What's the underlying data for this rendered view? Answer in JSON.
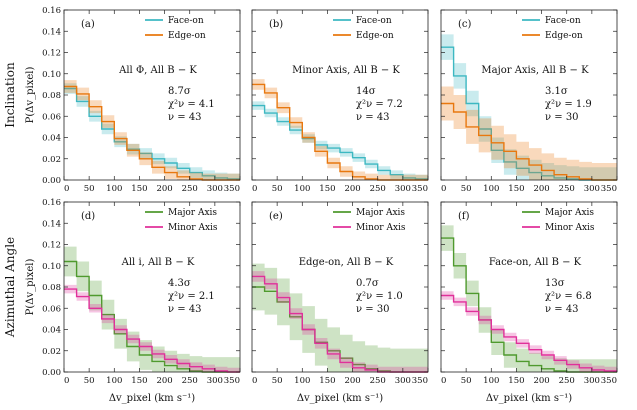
{
  "figure": {
    "row_titles": [
      "Inclination",
      "Azimuthal Angle"
    ],
    "ylabel": "P(Δv_pixel)",
    "xlabel": "Δv_pixel (km s⁻¹)",
    "colors": {
      "teal": "#3db8c2",
      "orange": "#e8780f",
      "green": "#4f9a2e",
      "magenta": "#e0309a"
    }
  },
  "chart_data": [
    {
      "panel": "(a)",
      "type": "step",
      "row": 0,
      "col": 0,
      "annotation": [
        "All Φ, All B − K",
        "8.7σ",
        "χ²ν = 4.1",
        "ν = 43"
      ],
      "xlim": [
        0,
        350
      ],
      "ylim": [
        0,
        0.16
      ],
      "xticks": [
        0,
        50,
        100,
        150,
        200,
        250,
        300,
        350
      ],
      "yticks": [
        0.0,
        0.02,
        0.04,
        0.06,
        0.08,
        0.1,
        0.12,
        0.14,
        0.16
      ],
      "series": [
        {
          "name": "Face-on",
          "color": "teal",
          "band": 0.005,
          "x": [
            0,
            25,
            50,
            75,
            100,
            125,
            150,
            175,
            200,
            225,
            250,
            275,
            300,
            325,
            350
          ],
          "y": [
            0.086,
            0.074,
            0.06,
            0.048,
            0.036,
            0.029,
            0.025,
            0.02,
            0.016,
            0.011,
            0.007,
            0.004,
            0.002,
            0.001,
            0.0
          ]
        },
        {
          "name": "Edge-on",
          "color": "orange",
          "band": 0.006,
          "x": [
            0,
            25,
            50,
            75,
            100,
            125,
            150,
            175,
            200,
            225,
            250,
            275,
            300,
            325,
            350
          ],
          "y": [
            0.088,
            0.081,
            0.069,
            0.055,
            0.039,
            0.028,
            0.02,
            0.012,
            0.007,
            0.003,
            0.001,
            0.0,
            0.0,
            0.0,
            0.0
          ]
        }
      ]
    },
    {
      "panel": "(b)",
      "type": "step",
      "row": 0,
      "col": 1,
      "annotation": [
        "Minor Axis, All B − K",
        "14σ",
        "χ²ν = 7.2",
        "ν = 43"
      ],
      "xlim": [
        0,
        350
      ],
      "ylim": [
        0,
        0.16
      ],
      "xticks": [
        0,
        50,
        100,
        150,
        200,
        250,
        300,
        350
      ],
      "yticks": [
        0.0,
        0.02,
        0.04,
        0.06,
        0.08,
        0.1,
        0.12,
        0.14,
        0.16
      ],
      "series": [
        {
          "name": "Face-on",
          "color": "teal",
          "band": 0.004,
          "x": [
            0,
            25,
            50,
            75,
            100,
            125,
            150,
            175,
            200,
            225,
            250,
            275,
            300,
            325,
            350
          ],
          "y": [
            0.07,
            0.063,
            0.055,
            0.047,
            0.039,
            0.033,
            0.03,
            0.026,
            0.021,
            0.015,
            0.009,
            0.005,
            0.002,
            0.001,
            0.0
          ]
        },
        {
          "name": "Edge-on",
          "color": "orange",
          "band": 0.005,
          "x": [
            0,
            25,
            50,
            75,
            100,
            125,
            150,
            175,
            200,
            225,
            250,
            275,
            300,
            325,
            350
          ],
          "y": [
            0.09,
            0.082,
            0.068,
            0.054,
            0.04,
            0.027,
            0.016,
            0.008,
            0.003,
            0.001,
            0.0,
            0.0,
            0.0,
            0.0,
            0.0
          ]
        }
      ]
    },
    {
      "panel": "(c)",
      "type": "step",
      "row": 0,
      "col": 2,
      "annotation": [
        "Major Axis, All B − K",
        "3.1σ",
        "χ²ν = 1.9",
        "ν = 30"
      ],
      "xlim": [
        0,
        350
      ],
      "ylim": [
        0,
        0.16
      ],
      "xticks": [
        0,
        50,
        100,
        150,
        200,
        250,
        300,
        350
      ],
      "yticks": [
        0.0,
        0.02,
        0.04,
        0.06,
        0.08,
        0.1,
        0.12,
        0.14,
        0.16
      ],
      "series": [
        {
          "name": "Face-on",
          "color": "teal",
          "band": 0.012,
          "x": [
            0,
            25,
            50,
            75,
            100,
            125,
            150,
            175,
            200,
            225,
            250,
            275,
            300,
            325,
            350
          ],
          "y": [
            0.125,
            0.098,
            0.072,
            0.048,
            0.028,
            0.017,
            0.011,
            0.007,
            0.004,
            0.002,
            0.001,
            0.0,
            0.0,
            0.0,
            0.0
          ]
        },
        {
          "name": "Edge-on",
          "color": "orange",
          "band": 0.016,
          "x": [
            0,
            25,
            50,
            75,
            100,
            125,
            150,
            175,
            200,
            225,
            250,
            275,
            300,
            325,
            350
          ],
          "y": [
            0.072,
            0.064,
            0.05,
            0.042,
            0.035,
            0.027,
            0.02,
            0.014,
            0.009,
            0.005,
            0.003,
            0.001,
            0.0,
            0.0,
            0.0
          ]
        }
      ]
    },
    {
      "panel": "(d)",
      "type": "step",
      "row": 1,
      "col": 0,
      "annotation": [
        "All i, All B − K",
        "4.3σ",
        "χ²ν = 2.1",
        "ν = 43"
      ],
      "xlim": [
        0,
        350
      ],
      "ylim": [
        0,
        0.16
      ],
      "xticks": [
        0,
        50,
        100,
        150,
        200,
        250,
        300,
        350
      ],
      "yticks": [
        0.0,
        0.02,
        0.04,
        0.06,
        0.08,
        0.1,
        0.12,
        0.14,
        0.16
      ],
      "series": [
        {
          "name": "Major Axis",
          "color": "green",
          "band": 0.014,
          "x": [
            0,
            25,
            50,
            75,
            100,
            125,
            150,
            175,
            200,
            225,
            250,
            275,
            300,
            325,
            350
          ],
          "y": [
            0.104,
            0.09,
            0.072,
            0.054,
            0.036,
            0.024,
            0.016,
            0.01,
            0.006,
            0.003,
            0.001,
            0.0,
            0.0,
            0.0,
            0.0
          ]
        },
        {
          "name": "Minor Axis",
          "color": "magenta",
          "band": 0.004,
          "x": [
            0,
            25,
            50,
            75,
            100,
            125,
            150,
            175,
            200,
            225,
            250,
            275,
            300,
            325,
            350
          ],
          "y": [
            0.078,
            0.071,
            0.06,
            0.05,
            0.04,
            0.031,
            0.024,
            0.017,
            0.012,
            0.008,
            0.005,
            0.003,
            0.001,
            0.0,
            0.0
          ]
        }
      ]
    },
    {
      "panel": "(e)",
      "type": "step",
      "row": 1,
      "col": 1,
      "annotation": [
        "Edge-on, All B − K",
        "0.7σ",
        "χ²ν = 1.0",
        "ν = 30"
      ],
      "xlim": [
        0,
        350
      ],
      "ylim": [
        0,
        0.16
      ],
      "xticks": [
        0,
        50,
        100,
        150,
        200,
        250,
        300,
        350
      ],
      "yticks": [
        0.0,
        0.02,
        0.04,
        0.06,
        0.08,
        0.1,
        0.12,
        0.14,
        0.16
      ],
      "series": [
        {
          "name": "Major Axis",
          "color": "green",
          "band": 0.022,
          "x": [
            0,
            25,
            50,
            75,
            100,
            125,
            150,
            175,
            200,
            225,
            250,
            275,
            300,
            325,
            350
          ],
          "y": [
            0.08,
            0.076,
            0.066,
            0.052,
            0.04,
            0.028,
            0.02,
            0.013,
            0.007,
            0.003,
            0.001,
            0.0,
            0.0,
            0.0,
            0.0
          ]
        },
        {
          "name": "Minor Axis",
          "color": "magenta",
          "band": 0.005,
          "x": [
            0,
            25,
            50,
            75,
            100,
            125,
            150,
            175,
            200,
            225,
            250,
            275,
            300,
            325,
            350
          ],
          "y": [
            0.09,
            0.083,
            0.07,
            0.055,
            0.04,
            0.027,
            0.017,
            0.009,
            0.004,
            0.002,
            0.0,
            0.0,
            0.0,
            0.0,
            0.0
          ]
        }
      ]
    },
    {
      "panel": "(f)",
      "type": "step",
      "row": 1,
      "col": 2,
      "annotation": [
        "Face-on, All B − K",
        "13σ",
        "χ²ν = 6.8",
        "ν = 43"
      ],
      "xlim": [
        0,
        350
      ],
      "ylim": [
        0,
        0.16
      ],
      "xticks": [
        0,
        50,
        100,
        150,
        200,
        250,
        300,
        350
      ],
      "yticks": [
        0.0,
        0.02,
        0.04,
        0.06,
        0.08,
        0.1,
        0.12,
        0.14,
        0.16
      ],
      "series": [
        {
          "name": "Major Axis",
          "color": "green",
          "band": 0.012,
          "x": [
            0,
            25,
            50,
            75,
            100,
            125,
            150,
            175,
            200,
            225,
            250,
            275,
            300,
            325,
            350
          ],
          "y": [
            0.126,
            0.1,
            0.074,
            0.049,
            0.028,
            0.016,
            0.01,
            0.006,
            0.003,
            0.001,
            0.0,
            0.0,
            0.0,
            0.0,
            0.0
          ]
        },
        {
          "name": "Minor Axis",
          "color": "magenta",
          "band": 0.004,
          "x": [
            0,
            25,
            50,
            75,
            100,
            125,
            150,
            175,
            200,
            225,
            250,
            275,
            300,
            325,
            350
          ],
          "y": [
            0.072,
            0.066,
            0.057,
            0.049,
            0.04,
            0.033,
            0.027,
            0.021,
            0.016,
            0.011,
            0.007,
            0.004,
            0.002,
            0.001,
            0.0
          ]
        }
      ]
    }
  ]
}
